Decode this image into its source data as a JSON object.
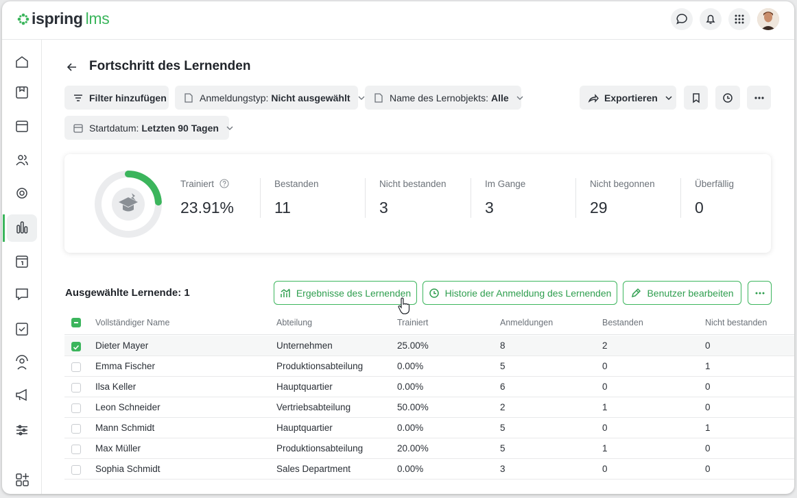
{
  "header": {
    "logo_brand": "ispring",
    "logo_product": "lms"
  },
  "page": {
    "title": "Fortschritt des Lernenden"
  },
  "filters": [
    {
      "label": "Filter hinzufügen"
    },
    {
      "label": "Anmeldungstyp:",
      "value": "Nicht ausgewählt"
    },
    {
      "label": "Name des Lernobjekts:",
      "value": "Alle"
    },
    {
      "label": "Startdatum:",
      "value": "Letzten 90 Tagen"
    }
  ],
  "export": "Exportieren",
  "stats": [
    {
      "label": "Trainiert",
      "value": {
        "value": 23.91,
        "label": "23.91%"
      }
    },
    {
      "label": "Bestanden",
      "value": 11
    },
    {
      "label": "Nicht bestanden",
      "value": 3
    },
    {
      "label": "Im Gange",
      "value": 3
    },
    {
      "label": "Nicht begonnen",
      "value": 29
    },
    {
      "label": "Überfällig",
      "value": 0
    }
  ],
  "selection": {
    "label": "Ausgewählte Lernende: 1"
  },
  "actions": [
    "Ergebnisse des Lernenden",
    "Historie der Anmeldung des Lernenden",
    "Benutzer bearbeiten"
  ],
  "table": {
    "columns": [
      "Vollständiger Name",
      "Abteilung",
      "Trainiert",
      "Anmeldungen",
      "Bestanden",
      "Nicht bestanden"
    ],
    "rows": [
      [
        "Dieter Mayer",
        "Unternehmen",
        "25.00%",
        8,
        2,
        0
      ],
      [
        "Emma Fischer",
        "Produktionsabteilung",
        "0.00%",
        5,
        0,
        1
      ],
      [
        "Ilsa Keller",
        "Hauptquartier",
        "0.00%",
        6,
        0,
        0
      ],
      [
        "Leon Schneider",
        "Vertriebsabteilung",
        "50.00%",
        2,
        1,
        0
      ],
      [
        "Mann Schmidt",
        "Hauptquartier",
        "0.00%",
        5,
        0,
        1
      ],
      [
        "Max Müller",
        "Produktionsabteilung",
        "20.00%",
        5,
        1,
        0
      ],
      [
        "Sophia Schmidt",
        "Sales Department",
        "0.00%",
        3,
        0,
        0
      ]
    ]
  }
}
